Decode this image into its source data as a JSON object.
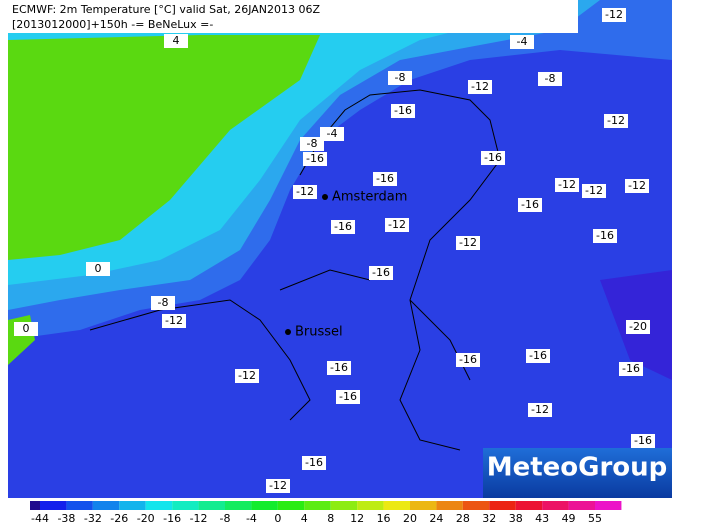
{
  "header": {
    "line1": "ECMWF: 2m Temperature [°C] valid Sat, 26JAN2013 06Z",
    "line2": "[2013012000]+150h -= BeNeLux =-"
  },
  "cities": [
    "Amsterdam",
    "Brussel"
  ],
  "contour_labels": [
    4,
    -12,
    -4,
    -8,
    -12,
    -8,
    -16,
    -12,
    -4,
    -8,
    -16,
    -16,
    -16,
    -12,
    -12,
    -12,
    -12,
    -16,
    -16,
    -12,
    -12,
    -16,
    0,
    -16,
    -8,
    -12,
    -20,
    0,
    -16,
    -16,
    -16,
    -16,
    -12,
    -16,
    -12,
    -16,
    -16,
    -12
  ],
  "colorbar_labels": [
    -44,
    -38,
    -32,
    -26,
    -20,
    -16,
    -12,
    -8,
    -4,
    0,
    4,
    8,
    12,
    16,
    20,
    24,
    28,
    32,
    38,
    43,
    49,
    55
  ],
  "logo": "MeteoGroup"
}
